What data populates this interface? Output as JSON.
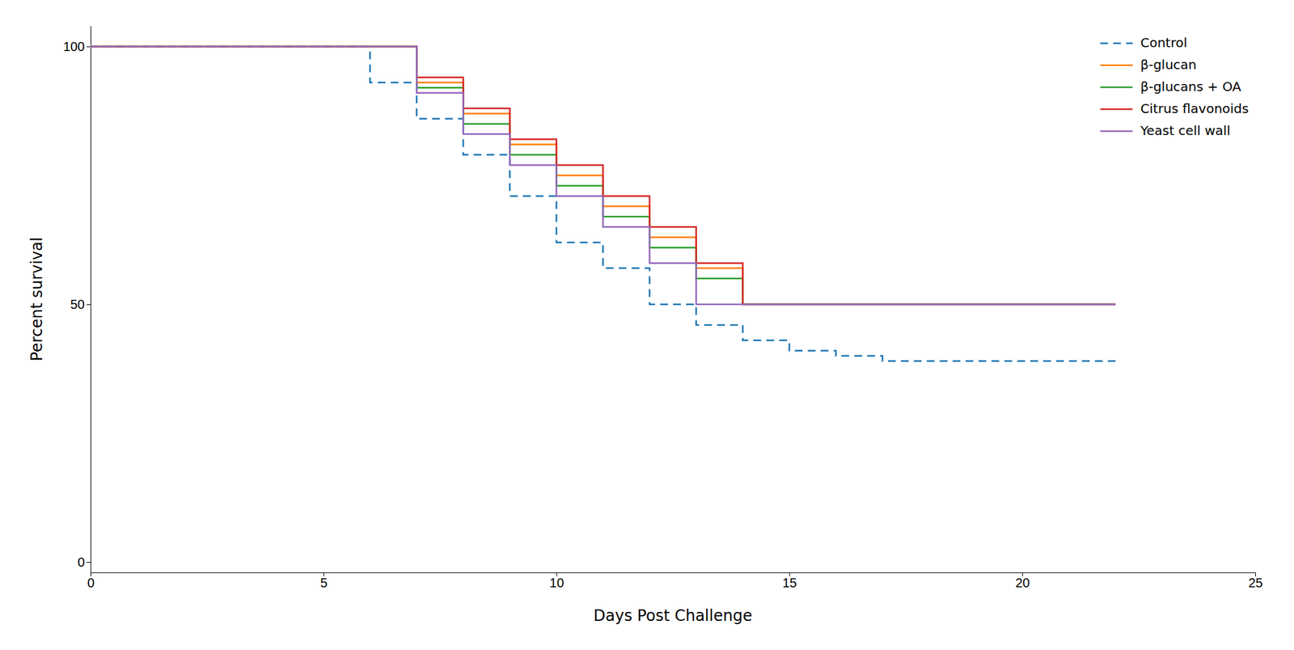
{
  "chart_data": {
    "type": "line",
    "xlabel": "Days Post Challenge",
    "ylabel": "Percent survival",
    "xlim": [
      0,
      25
    ],
    "ylim": [
      -2,
      104
    ],
    "xticks": [
      0,
      5,
      10,
      15,
      20,
      25
    ],
    "yticks": [
      0,
      50,
      100
    ],
    "grid": false,
    "legend": "upper right",
    "series": [
      {
        "name": "Control",
        "line_style": "dashed",
        "x": [
          0,
          6,
          6,
          7,
          7,
          8,
          8,
          9,
          9,
          10,
          10,
          11,
          11,
          12,
          12,
          13,
          13,
          14,
          14,
          15,
          15,
          16,
          16,
          17,
          17,
          22
        ],
        "values": [
          100,
          100,
          93,
          93,
          86,
          86,
          79,
          79,
          71,
          71,
          62,
          62,
          57,
          57,
          50,
          50,
          46,
          46,
          43,
          43,
          41,
          41,
          40,
          40,
          39,
          39
        ]
      },
      {
        "name": "β-glucan",
        "line_style": "solid",
        "x": [
          0,
          7,
          7,
          8,
          8,
          9,
          9,
          10,
          10,
          11,
          11,
          12,
          12,
          13,
          13,
          14,
          14,
          22
        ],
        "values": [
          100,
          100,
          93,
          93,
          87,
          87,
          81,
          81,
          75,
          75,
          69,
          69,
          63,
          63,
          57,
          57,
          50,
          50
        ]
      },
      {
        "name": "β-glucans + OA",
        "line_style": "solid",
        "x": [
          0,
          7,
          7,
          8,
          8,
          9,
          9,
          10,
          10,
          11,
          11,
          12,
          12,
          13,
          13,
          14,
          14,
          22
        ],
        "values": [
          100,
          100,
          92,
          92,
          85,
          85,
          79,
          79,
          73,
          73,
          67,
          67,
          61,
          61,
          55,
          55,
          50,
          50
        ]
      },
      {
        "name": "Citrus flavonoids",
        "line_style": "solid",
        "x": [
          0,
          7,
          7,
          8,
          8,
          9,
          9,
          10,
          10,
          11,
          11,
          12,
          12,
          13,
          13,
          14,
          14,
          22
        ],
        "values": [
          100,
          100,
          94,
          94,
          88,
          88,
          82,
          82,
          77,
          77,
          71,
          71,
          65,
          65,
          58,
          58,
          50,
          50
        ]
      },
      {
        "name": "Yeast cell wall",
        "line_style": "solid",
        "x": [
          0,
          7,
          7,
          8,
          8,
          9,
          9,
          10,
          10,
          11,
          11,
          12,
          12,
          13,
          13,
          14,
          14,
          22
        ],
        "values": [
          100,
          100,
          91,
          91,
          83,
          83,
          77,
          77,
          71,
          71,
          65,
          65,
          58,
          58,
          50,
          50,
          50,
          50
        ]
      }
    ]
  }
}
